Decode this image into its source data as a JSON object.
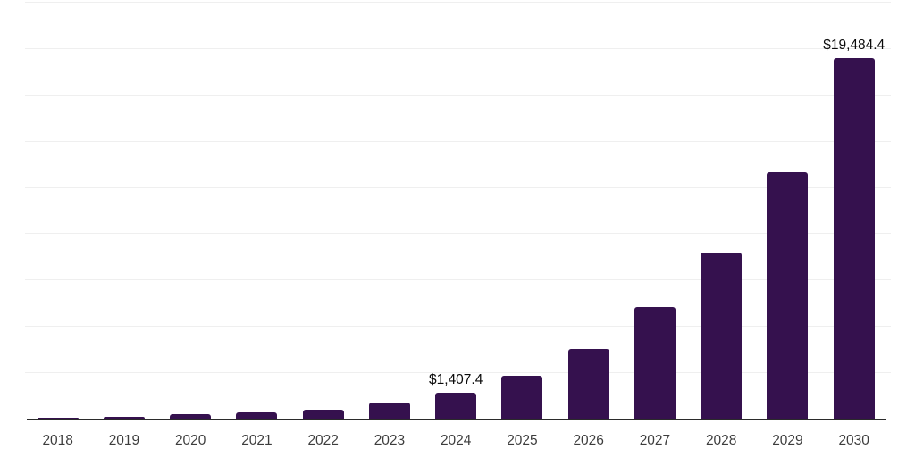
{
  "chart_data": {
    "type": "bar",
    "title": "",
    "xlabel": "",
    "ylabel": "",
    "categories": [
      "2018",
      "2019",
      "2020",
      "2021",
      "2022",
      "2023",
      "2024",
      "2025",
      "2026",
      "2027",
      "2028",
      "2029",
      "2030"
    ],
    "values": [
      50,
      120,
      220,
      350,
      480,
      850,
      1407.4,
      2300,
      3740,
      6000,
      8950,
      13290,
      19484.4
    ],
    "annotations": [
      {
        "category": "2024",
        "index": 6,
        "label": "$1,407.4"
      },
      {
        "category": "2030",
        "index": 12,
        "label": "$19,484.4"
      }
    ],
    "ylim": [
      0,
      22500
    ],
    "grid_step": 2500,
    "grid": "horizontal",
    "legend": false,
    "y_tick_labels_visible": false,
    "colors": {
      "bar": "#35114E",
      "gridline": "#EFEFEF",
      "axis": "#2B2B2B",
      "tick_label": "#3D3D3D",
      "data_label": "#0A0A0A"
    }
  }
}
